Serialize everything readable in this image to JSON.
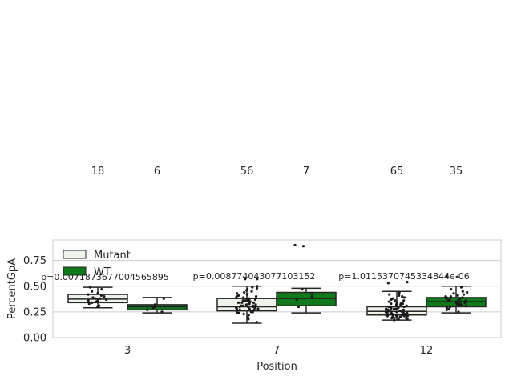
{
  "chart_data": {
    "type": "boxplot",
    "xlabel": "Position",
    "ylabel": "PercentGpA",
    "categories": [
      "3",
      "7",
      "12"
    ],
    "yticks": [
      "0.00",
      "0.25",
      "0.50",
      "0.75"
    ],
    "ylim": [
      0.0,
      0.95
    ],
    "grid": true,
    "legend_position": "top-left",
    "series": [
      {
        "name": "Mutant",
        "color": "#eef4ea"
      },
      {
        "name": "WT",
        "color": "#0f7a1a"
      }
    ],
    "boxes": [
      {
        "category": "3",
        "series": "Mutant",
        "min": 0.29,
        "q1": 0.34,
        "median": 0.375,
        "q3": 0.42,
        "max": 0.49,
        "n": "18",
        "points": [
          0.3,
          0.31,
          0.33,
          0.34,
          0.35,
          0.36,
          0.36,
          0.37,
          0.38,
          0.38,
          0.39,
          0.4,
          0.41,
          0.42,
          0.43,
          0.45,
          0.47,
          0.49
        ]
      },
      {
        "category": "3",
        "series": "WT",
        "min": 0.24,
        "q1": 0.27,
        "median": 0.3,
        "q3": 0.32,
        "max": 0.39,
        "n": "6",
        "points": [
          0.25,
          0.27,
          0.29,
          0.3,
          0.32,
          0.38
        ]
      },
      {
        "category": "7",
        "series": "Mutant",
        "min": 0.14,
        "q1": 0.26,
        "median": 0.3,
        "q3": 0.38,
        "max": 0.5,
        "n": "56",
        "points": [
          0.15,
          0.18,
          0.2,
          0.22,
          0.23,
          0.24,
          0.25,
          0.25,
          0.26,
          0.26,
          0.27,
          0.27,
          0.28,
          0.28,
          0.29,
          0.29,
          0.3,
          0.3,
          0.3,
          0.31,
          0.31,
          0.32,
          0.32,
          0.33,
          0.33,
          0.34,
          0.34,
          0.35,
          0.35,
          0.36,
          0.36,
          0.37,
          0.37,
          0.38,
          0.38,
          0.39,
          0.39,
          0.4,
          0.4,
          0.41,
          0.42,
          0.43,
          0.44,
          0.45,
          0.46,
          0.47,
          0.48,
          0.49,
          0.5,
          0.28,
          0.31,
          0.34,
          0.24,
          0.36,
          0.57,
          0.57
        ]
      },
      {
        "category": "7",
        "series": "WT",
        "min": 0.24,
        "q1": 0.31,
        "median": 0.38,
        "q3": 0.44,
        "max": 0.48,
        "n": "7",
        "points": [
          0.3,
          0.37,
          0.4,
          0.43,
          0.47,
          0.89,
          0.9
        ]
      },
      {
        "category": "12",
        "series": "Mutant",
        "min": 0.17,
        "q1": 0.22,
        "median": 0.255,
        "q3": 0.3,
        "max": 0.45,
        "n": "65",
        "points": [
          0.17,
          0.18,
          0.18,
          0.19,
          0.19,
          0.2,
          0.2,
          0.2,
          0.21,
          0.21,
          0.21,
          0.22,
          0.22,
          0.22,
          0.23,
          0.23,
          0.23,
          0.24,
          0.24,
          0.24,
          0.25,
          0.25,
          0.25,
          0.25,
          0.26,
          0.26,
          0.26,
          0.27,
          0.27,
          0.27,
          0.28,
          0.28,
          0.28,
          0.29,
          0.29,
          0.3,
          0.3,
          0.31,
          0.31,
          0.32,
          0.32,
          0.33,
          0.33,
          0.34,
          0.34,
          0.35,
          0.36,
          0.37,
          0.38,
          0.39,
          0.4,
          0.41,
          0.42,
          0.44,
          0.19,
          0.21,
          0.23,
          0.26,
          0.28,
          0.3,
          0.33,
          0.36,
          0.22,
          0.53,
          0.54
        ]
      },
      {
        "category": "12",
        "series": "WT",
        "min": 0.24,
        "q1": 0.3,
        "median": 0.35,
        "q3": 0.39,
        "max": 0.5,
        "n": "35",
        "points": [
          0.25,
          0.27,
          0.28,
          0.29,
          0.3,
          0.31,
          0.31,
          0.32,
          0.32,
          0.33,
          0.33,
          0.34,
          0.34,
          0.35,
          0.35,
          0.35,
          0.36,
          0.36,
          0.37,
          0.37,
          0.38,
          0.38,
          0.39,
          0.39,
          0.4,
          0.4,
          0.41,
          0.42,
          0.43,
          0.44,
          0.45,
          0.47,
          0.49,
          0.59,
          0.6
        ]
      }
    ],
    "pvalues": [
      {
        "category": "3",
        "label": "p=0.0071873677004565895"
      },
      {
        "category": "7",
        "label": "p=0.008774043077103152"
      },
      {
        "category": "12",
        "label": "p=1.0115370745334844e-06"
      }
    ]
  }
}
